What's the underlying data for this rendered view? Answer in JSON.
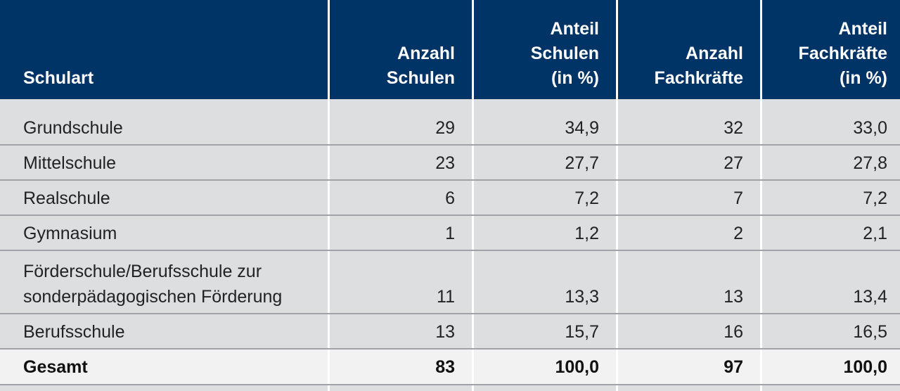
{
  "table": {
    "headers": [
      [
        "Schulart"
      ],
      [
        "Anzahl",
        "Schulen"
      ],
      [
        "Anteil",
        "Schulen",
        "(in %)"
      ],
      [
        "Anzahl",
        "Fachkräfte"
      ],
      [
        "Anteil",
        "Fachkräfte",
        "(in %)"
      ]
    ],
    "rows": [
      {
        "label": [
          "Grundschule"
        ],
        "anzahl_schulen": "29",
        "anteil_schulen": "34,9",
        "anzahl_fachkraefte": "32",
        "anteil_fachkraefte": "33,0"
      },
      {
        "label": [
          "Mittelschule"
        ],
        "anzahl_schulen": "23",
        "anteil_schulen": "27,7",
        "anzahl_fachkraefte": "27",
        "anteil_fachkraefte": "27,8"
      },
      {
        "label": [
          "Realschule"
        ],
        "anzahl_schulen": "6",
        "anteil_schulen": "7,2",
        "anzahl_fachkraefte": "7",
        "anteil_fachkraefte": "7,2"
      },
      {
        "label": [
          "Gymnasium"
        ],
        "anzahl_schulen": "1",
        "anteil_schulen": "1,2",
        "anzahl_fachkraefte": "2",
        "anteil_fachkraefte": "2,1"
      },
      {
        "label": [
          "Förderschule/Berufsschule zur",
          "sonderpädagogischen Förderung"
        ],
        "anzahl_schulen": "11",
        "anteil_schulen": "13,3",
        "anzahl_fachkraefte": "13",
        "anteil_fachkraefte": "13,4"
      },
      {
        "label": [
          "Berufsschule"
        ],
        "anzahl_schulen": "13",
        "anteil_schulen": "15,7",
        "anzahl_fachkraefte": "16",
        "anteil_fachkraefte": "16,5"
      }
    ],
    "total": {
      "label": "Gesamt",
      "anzahl_schulen": "83",
      "anteil_schulen": "100,0",
      "anzahl_fachkraefte": "97",
      "anteil_fachkraefte": "100,0"
    }
  },
  "colors": {
    "header_bg": "#003366",
    "header_text": "#ffffff",
    "row_bg": "#dddee0",
    "total_bg": "#f2f2f2",
    "separator": "#9fa2a6"
  }
}
